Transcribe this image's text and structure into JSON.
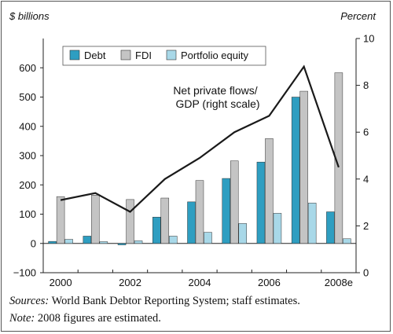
{
  "chart_data": {
    "type": "bar",
    "left_axis_label": "$ billions",
    "right_axis_label": "Percent",
    "categories": [
      "2000",
      "2001",
      "2002",
      "2003",
      "2004",
      "2005",
      "2006",
      "2007",
      "2008e"
    ],
    "x_tick_labels": [
      "2000",
      "2002",
      "2004",
      "2006",
      "2008e"
    ],
    "y_left": {
      "min": -100,
      "max": 700,
      "ticks": [
        -100,
        0,
        100,
        200,
        300,
        400,
        500,
        600
      ]
    },
    "y_right": {
      "min": 0,
      "max": 10,
      "ticks": [
        0,
        2,
        4,
        6,
        8,
        10
      ]
    },
    "series": [
      {
        "name": "Debt",
        "color": "#2e9ec1",
        "values": [
          7,
          25,
          -5,
          90,
          142,
          222,
          278,
          500,
          108
        ]
      },
      {
        "name": "FDI",
        "color": "#c4c4c4",
        "values": [
          160,
          165,
          150,
          155,
          215,
          282,
          358,
          520,
          583
        ]
      },
      {
        "name": "Portfolio equity",
        "color": "#a8d8e8",
        "values": [
          14,
          6,
          9,
          25,
          38,
          68,
          103,
          138,
          16
        ]
      }
    ],
    "line_series": {
      "axis": "right",
      "values": [
        3.1,
        3.4,
        2.6,
        4.0,
        4.9,
        6.0,
        6.7,
        8.8,
        4.5
      ]
    },
    "annotation": [
      "Net private flows/",
      "GDP (right scale)"
    ],
    "legend": "top-left",
    "grid": false
  },
  "notes": {
    "sources_label": "Sources:",
    "sources_text": " World Bank Debtor Reporting System; staff estimates.",
    "note_label": "Note:",
    "note_text": " 2008 figures are estimated."
  }
}
